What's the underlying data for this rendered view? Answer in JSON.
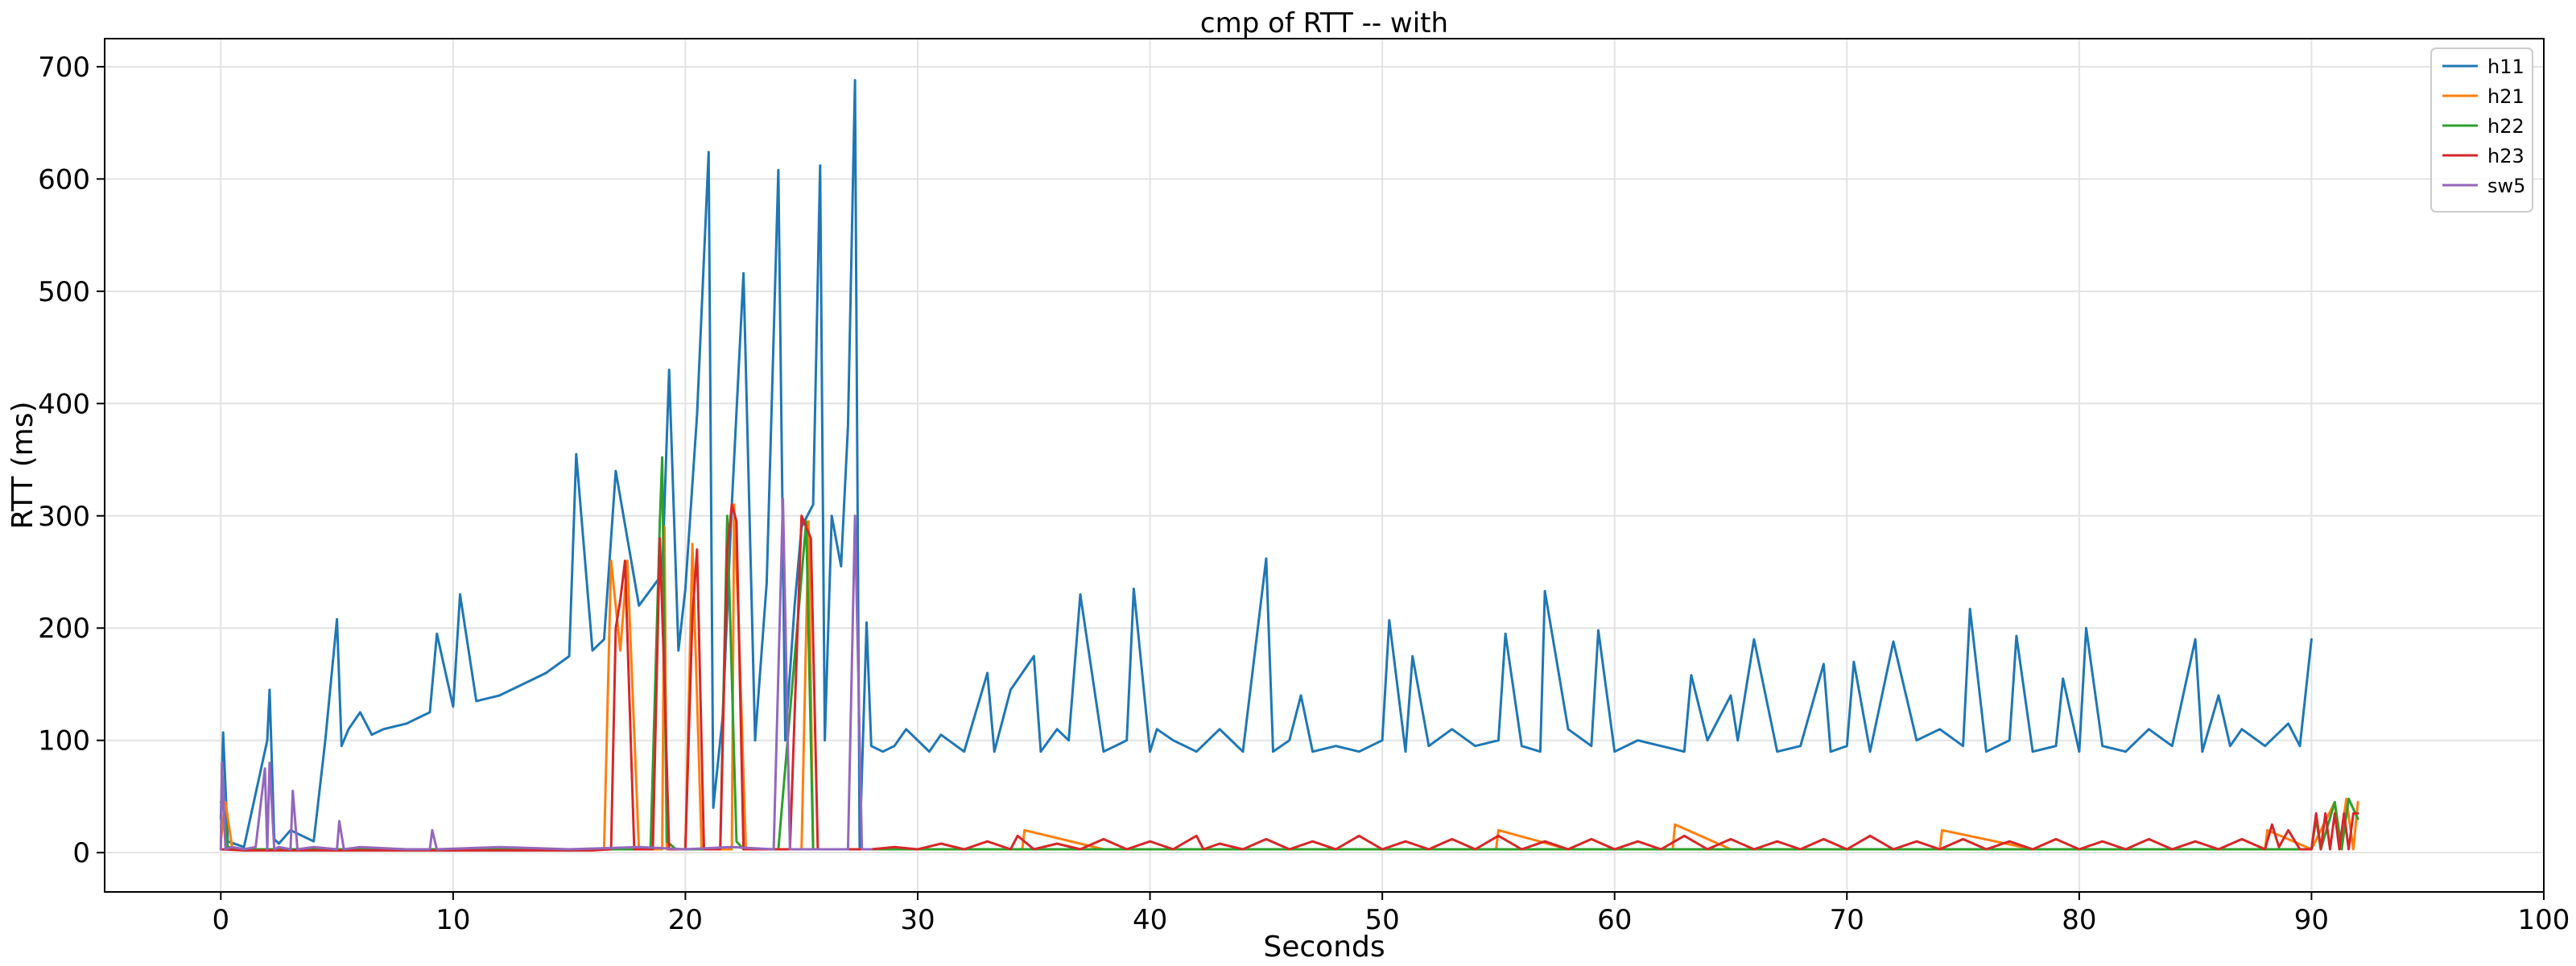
{
  "chart_data": {
    "type": "line",
    "title": "cmp of RTT -- with",
    "xlabel": "Seconds",
    "ylabel": "RTT (ms)",
    "xlim": [
      -5,
      100
    ],
    "ylim": [
      -35,
      725
    ],
    "xticks": [
      0,
      10,
      20,
      30,
      40,
      50,
      60,
      70,
      80,
      90,
      100
    ],
    "yticks": [
      0,
      100,
      200,
      300,
      400,
      500,
      600,
      700
    ],
    "grid": true,
    "legend_position": "top-right",
    "series": [
      {
        "name": "h11",
        "color": "#1f77b4",
        "x": [
          0,
          0.1,
          0.3,
          1,
          2,
          2.1,
          2.3,
          2.5,
          3,
          4,
          4.5,
          5,
          5.2,
          5.5,
          6,
          6.5,
          7,
          8,
          9,
          9.3,
          10,
          10.3,
          11,
          12,
          13,
          14,
          15,
          15.3,
          16,
          16.5,
          17,
          18,
          19,
          19.3,
          19.7,
          20,
          20.5,
          21,
          21.2,
          21.6,
          22,
          22.5,
          23,
          23.5,
          24,
          24.3,
          24.7,
          25,
          25.5,
          25.8,
          26,
          26.3,
          26.7,
          27,
          27.3,
          27.5,
          27.8,
          28,
          28.5,
          29,
          29.5,
          30,
          30.5,
          31,
          32,
          33,
          33.3,
          34,
          35,
          35.3,
          36,
          36.5,
          37,
          38,
          39,
          39.3,
          40,
          40.3,
          41,
          42,
          43,
          44,
          45,
          45.3,
          46,
          46.5,
          47,
          48,
          49,
          50,
          50.3,
          51,
          51.3,
          52,
          53,
          54,
          55,
          55.3,
          56,
          56.8,
          57,
          58,
          59,
          59.3,
          60,
          61,
          62,
          63,
          63.3,
          64,
          65,
          65.3,
          66,
          67,
          68,
          69,
          69.3,
          70,
          70.3,
          71,
          72,
          73,
          74,
          75,
          75.3,
          76,
          77,
          77.3,
          78,
          79,
          79.3,
          80,
          80.3,
          81,
          82,
          83,
          84,
          85,
          85.3,
          86,
          86.5,
          87,
          88,
          89,
          89.5,
          90
        ],
        "y": [
          30,
          107,
          10,
          5,
          100,
          145,
          12,
          8,
          20,
          10,
          100,
          208,
          95,
          110,
          125,
          105,
          110,
          115,
          125,
          195,
          130,
          230,
          135,
          140,
          150,
          160,
          175,
          355,
          180,
          190,
          340,
          220,
          248,
          430,
          180,
          235,
          390,
          624,
          40,
          120,
          310,
          516,
          100,
          240,
          608,
          100,
          220,
          290,
          310,
          612,
          100,
          300,
          255,
          380,
          688,
          5,
          205,
          95,
          90,
          95,
          110,
          100,
          90,
          105,
          90,
          160,
          90,
          145,
          175,
          90,
          110,
          100,
          230,
          90,
          100,
          235,
          90,
          110,
          100,
          90,
          110,
          90,
          262,
          90,
          100,
          140,
          90,
          95,
          90,
          100,
          207,
          90,
          175,
          95,
          110,
          95,
          100,
          195,
          95,
          90,
          233,
          110,
          95,
          198,
          90,
          100,
          95,
          90,
          158,
          100,
          140,
          100,
          190,
          90,
          95,
          168,
          90,
          95,
          170,
          90,
          188,
          100,
          110,
          95,
          217,
          90,
          100,
          193,
          90,
          95,
          155,
          90,
          200,
          95,
          90,
          110,
          95,
          190,
          90,
          140,
          95,
          110,
          95,
          115,
          95,
          190
        ]
      },
      {
        "name": "h21",
        "color": "#ff7f0e",
        "x": [
          0,
          0.2,
          0.5,
          1,
          3,
          5,
          8,
          10,
          12,
          15,
          16.5,
          16.8,
          17.2,
          17.5,
          18,
          19,
          19.1,
          19.2,
          19.5,
          20,
          20.3,
          20.7,
          21,
          22,
          22.1,
          22.3,
          22.6,
          23,
          25,
          25.3,
          25.5,
          25.8,
          26,
          28,
          30,
          34.5,
          34.6,
          38,
          40,
          43,
          45,
          48,
          50,
          54.9,
          55,
          58,
          60,
          62.5,
          62.6,
          65,
          68,
          70,
          74,
          74.1,
          78,
          80,
          85,
          88,
          88.1,
          90,
          91,
          91.2,
          91.5,
          91.8,
          92
        ],
        "y": [
          10,
          45,
          3,
          2,
          3,
          2,
          3,
          2,
          3,
          2,
          3,
          260,
          180,
          260,
          3,
          3,
          290,
          3,
          3,
          3,
          275,
          3,
          3,
          3,
          310,
          200,
          3,
          3,
          3,
          295,
          3,
          3,
          3,
          3,
          3,
          3,
          20,
          3,
          3,
          3,
          3,
          3,
          3,
          3,
          20,
          3,
          3,
          3,
          25,
          3,
          3,
          3,
          3,
          20,
          3,
          3,
          3,
          3,
          20,
          3,
          45,
          3,
          48,
          3,
          45
        ]
      },
      {
        "name": "h22",
        "color": "#2ca02c",
        "x": [
          0,
          0.1,
          0.3,
          1,
          5,
          10,
          15,
          17,
          18.5,
          18.9,
          19.0,
          19.2,
          19.6,
          20,
          21.5,
          21.8,
          22.2,
          22.5,
          24,
          25.2,
          25.5,
          25.8,
          27,
          28,
          35,
          40,
          45,
          50,
          55,
          60,
          65,
          70,
          75,
          80,
          85,
          88,
          90,
          90.2,
          90.4,
          91,
          91.3,
          91.6,
          92
        ],
        "y": [
          45,
          45,
          5,
          3,
          3,
          3,
          3,
          3,
          3,
          295,
          352,
          10,
          3,
          3,
          3,
          300,
          10,
          3,
          3,
          295,
          3,
          3,
          3,
          3,
          3,
          3,
          3,
          3,
          3,
          3,
          3,
          3,
          3,
          3,
          3,
          3,
          3,
          30,
          3,
          45,
          3,
          48,
          30
        ]
      },
      {
        "name": "h23",
        "color": "#d62728",
        "x": [
          0,
          1,
          5,
          10,
          16,
          16.8,
          17.0,
          17.2,
          17.4,
          17.8,
          18,
          18.6,
          18.9,
          19.1,
          19.3,
          20,
          20.3,
          20.5,
          20.8,
          21.5,
          21.8,
          22.0,
          22.2,
          22.5,
          23,
          24.5,
          25.0,
          25.4,
          25.7,
          26.2,
          27,
          28,
          29,
          30,
          31,
          32,
          33,
          34,
          34.3,
          35,
          36,
          37,
          38,
          39,
          40,
          41,
          42,
          42.3,
          43,
          44,
          45,
          46,
          47,
          48,
          49,
          50,
          51,
          52,
          53,
          54,
          55,
          56,
          57,
          58,
          59,
          60,
          61,
          62,
          63,
          64,
          65,
          66,
          67,
          68,
          69,
          70,
          71,
          72,
          73,
          74,
          75,
          76,
          77,
          78,
          79,
          80,
          81,
          82,
          83,
          84,
          85,
          86,
          87,
          88,
          88.3,
          88.6,
          89,
          89.5,
          90,
          90.2,
          90.4,
          90.6,
          90.8,
          91.0,
          91.2,
          91.4,
          91.6,
          91.8,
          92
        ],
        "y": [
          3,
          2,
          2,
          2,
          2,
          3,
          200,
          225,
          260,
          3,
          3,
          3,
          280,
          150,
          3,
          3,
          210,
          270,
          3,
          3,
          270,
          310,
          295,
          3,
          3,
          3,
          300,
          280,
          3,
          3,
          3,
          3,
          5,
          3,
          8,
          3,
          10,
          3,
          15,
          3,
          8,
          3,
          12,
          3,
          10,
          3,
          15,
          3,
          8,
          3,
          12,
          3,
          10,
          3,
          15,
          3,
          10,
          3,
          12,
          3,
          15,
          3,
          10,
          3,
          12,
          3,
          10,
          3,
          15,
          3,
          12,
          3,
          10,
          3,
          12,
          3,
          15,
          3,
          10,
          3,
          12,
          3,
          10,
          3,
          12,
          3,
          10,
          3,
          12,
          3,
          10,
          3,
          12,
          3,
          25,
          5,
          20,
          3,
          3,
          35,
          3,
          35,
          3,
          35,
          3,
          35,
          3,
          35,
          35
        ]
      },
      {
        "name": "sw5",
        "color": "#9467bd",
        "x": [
          0,
          0.05,
          0.2,
          0.5,
          1,
          1.5,
          1.9,
          2.0,
          2.1,
          2.3,
          2.5,
          3.0,
          3.1,
          3.3,
          4,
          5,
          5.1,
          5.3,
          6,
          8,
          9,
          9.1,
          9.3,
          12,
          15,
          18,
          20,
          22,
          23.8,
          24.2,
          24.5,
          26,
          27.0,
          27.3,
          27.6,
          28
        ],
        "y": [
          3,
          80,
          3,
          5,
          3,
          5,
          75,
          3,
          80,
          3,
          5,
          3,
          55,
          3,
          5,
          3,
          28,
          3,
          5,
          3,
          3,
          20,
          3,
          5,
          3,
          5,
          3,
          5,
          3,
          315,
          3,
          3,
          3,
          300,
          3,
          3
        ]
      }
    ]
  }
}
